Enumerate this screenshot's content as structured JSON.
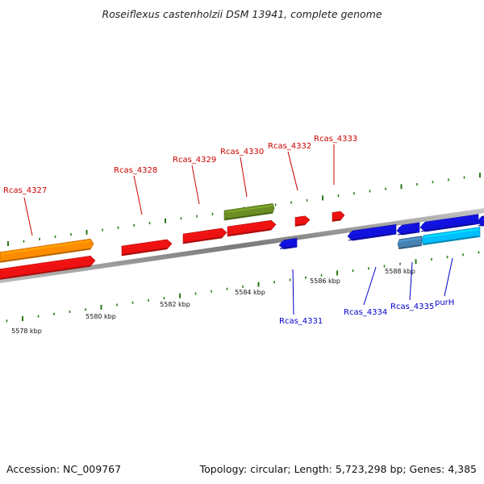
{
  "title": "Roseiflexus castenholzii DSM 13941, complete genome",
  "footer": {
    "accession": "Accession: NC_009767",
    "summary": "Topology: circular; Length: 5,723,298 bp; Genes: 4,385"
  },
  "colors": {
    "forward_label": "#cc0000",
    "reverse_label": "#0000cc",
    "tick": "#2a7a1a",
    "backbone": "#8a8a8a"
  },
  "scale": {
    "unit": "kbp",
    "major_ticks": [
      {
        "value": 5578,
        "label": "5578 kbp"
      },
      {
        "value": 5580,
        "label": "5580 kbp"
      },
      {
        "value": 5582,
        "label": "5582 kbp"
      },
      {
        "value": 5584,
        "label": "5584 kbp"
      },
      {
        "value": 5586,
        "label": "5586 kbp"
      },
      {
        "value": 5588,
        "label": "5588 kbp"
      }
    ]
  },
  "genes": [
    {
      "name": "Rcas_4327",
      "strand": "+",
      "color": "#ff8c00"
    },
    {
      "name": "",
      "strand": "+",
      "color": "#ee1111"
    },
    {
      "name": "Rcas_4328",
      "strand": "+",
      "color": "#ee1111"
    },
    {
      "name": "Rcas_4329",
      "strand": "+",
      "color": "#ee1111"
    },
    {
      "name": "",
      "strand": "+",
      "color": "#ee1111"
    },
    {
      "name": "Rcas_4330",
      "strand": "+",
      "color": "#6b8e23"
    },
    {
      "name": "Rcas_4331",
      "strand": "-",
      "color": "#1111dd"
    },
    {
      "name": "Rcas_4332",
      "strand": "+",
      "color": "#ee1111"
    },
    {
      "name": "Rcas_4333",
      "strand": "+",
      "color": "#ee1111"
    },
    {
      "name": "Rcas_4334",
      "strand": "-",
      "color": "#1111dd"
    },
    {
      "name": "",
      "strand": "-",
      "color": "#1111dd"
    },
    {
      "name": "Rcas_4335",
      "strand": "-",
      "color": "#4682b4"
    },
    {
      "name": "",
      "strand": "-",
      "color": "#1111dd"
    },
    {
      "name": "purH",
      "strand": "-",
      "color": "#00bfff"
    },
    {
      "name": "",
      "strand": "-",
      "color": "#1111dd"
    }
  ]
}
